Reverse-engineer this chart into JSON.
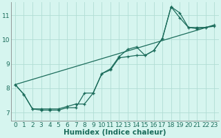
{
  "xlabel": "Humidex (Indice chaleur)",
  "bg_color": "#d6f5ef",
  "line_color": "#1a6b5a",
  "grid_color": "#b0ddd4",
  "x_ticks": [
    0,
    1,
    2,
    3,
    4,
    5,
    6,
    7,
    8,
    9,
    10,
    11,
    12,
    13,
    14,
    15,
    16,
    17,
    18,
    19,
    20,
    21,
    22,
    23
  ],
  "y_ticks": [
    7,
    8,
    9,
    10,
    11
  ],
  "ylim": [
    6.65,
    11.55
  ],
  "xlim": [
    -0.5,
    23.5
  ],
  "line1_x": [
    0,
    1,
    2,
    3,
    4,
    5,
    6,
    7,
    8,
    9,
    10,
    11,
    12,
    13,
    14,
    15,
    16,
    17,
    18,
    19,
    20,
    21,
    22,
    23
  ],
  "line1_y": [
    8.15,
    7.75,
    7.15,
    7.15,
    7.15,
    7.15,
    7.25,
    7.35,
    7.35,
    7.8,
    8.6,
    8.8,
    9.3,
    9.6,
    9.7,
    9.35,
    9.55,
    10.05,
    11.35,
    11.1,
    10.5,
    10.5,
    10.5,
    10.6
  ],
  "line2_x": [
    0,
    1,
    2,
    3,
    4,
    5,
    6,
    7,
    8,
    9,
    10,
    11,
    12,
    13,
    14,
    15,
    16,
    17,
    18,
    19,
    20,
    21,
    22,
    23
  ],
  "line2_y": [
    8.15,
    7.75,
    7.15,
    7.1,
    7.1,
    7.1,
    7.2,
    7.2,
    7.8,
    7.8,
    8.6,
    8.75,
    9.25,
    9.3,
    9.35,
    9.35,
    9.55,
    10.05,
    11.35,
    10.9,
    10.5,
    10.45,
    10.5,
    10.55
  ],
  "line3_x": [
    0,
    23
  ],
  "line3_y": [
    8.15,
    10.6
  ],
  "tick_fontsize": 6.5,
  "xlabel_fontsize": 7.5
}
